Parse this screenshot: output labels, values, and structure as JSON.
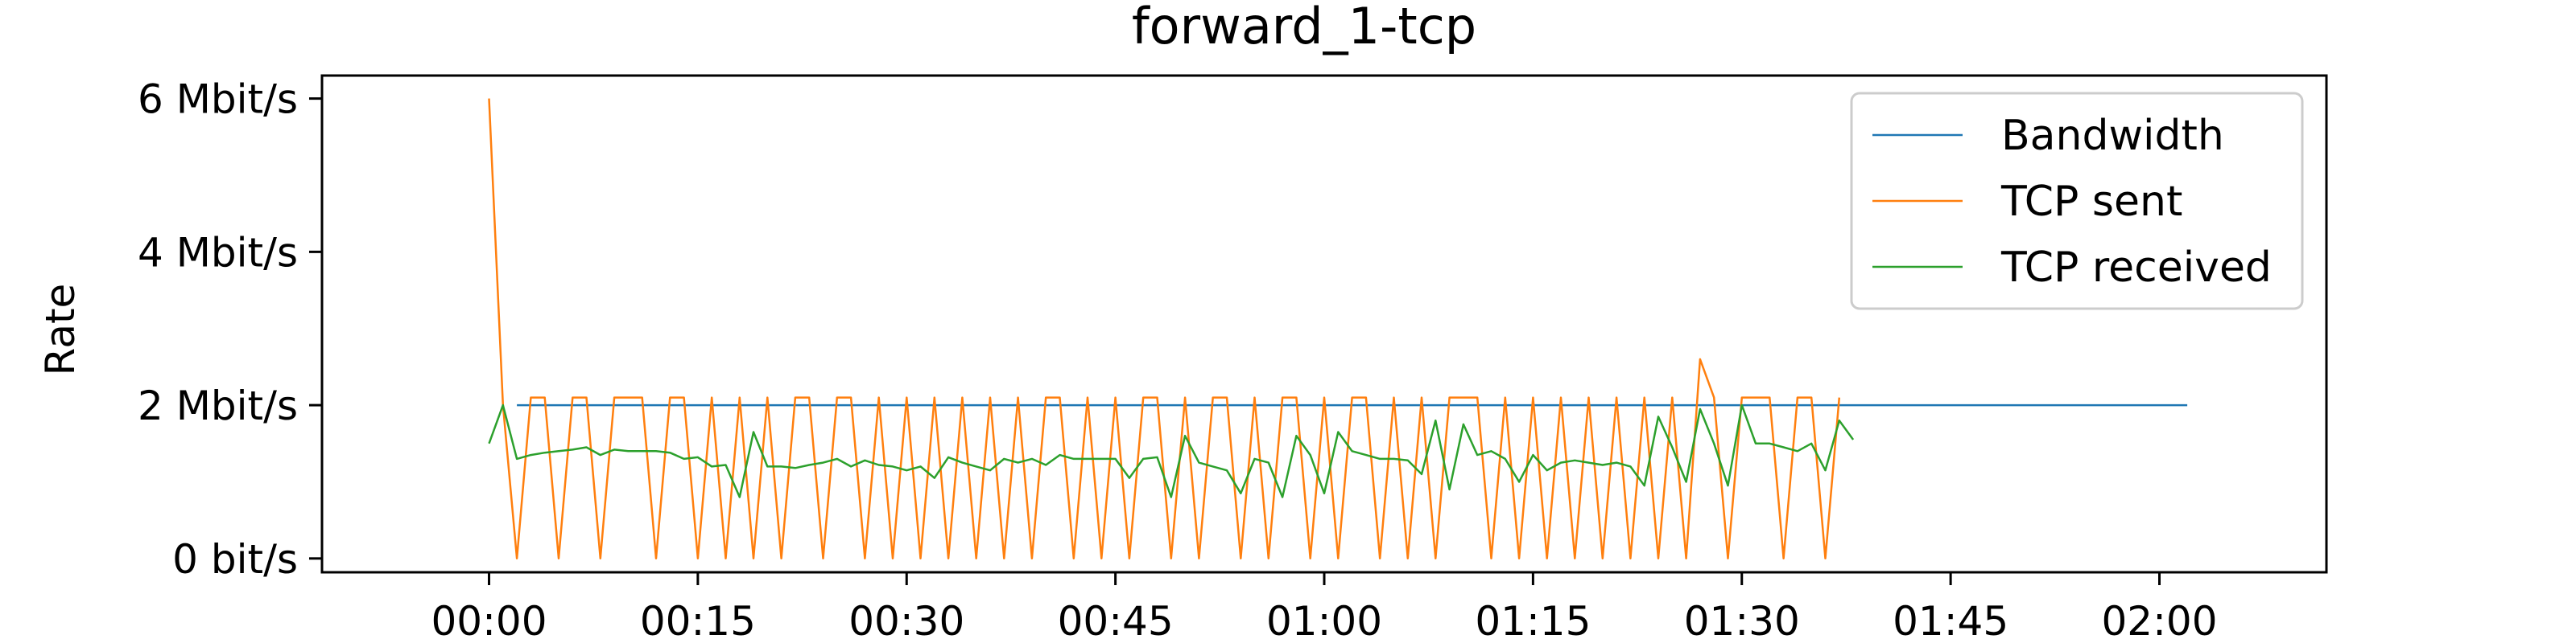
{
  "chart_data": {
    "type": "line",
    "title": "forward_1-tcp",
    "xlabel": "",
    "ylabel": "Rate",
    "x_unit": "seconds",
    "xlim": [
      -12,
      132
    ],
    "ylim": [
      -0.18,
      6.3
    ],
    "y_unit": "Mbit/s",
    "x_ticks": [
      {
        "value": 0,
        "label": "00:00"
      },
      {
        "value": 15,
        "label": "00:15"
      },
      {
        "value": 30,
        "label": "00:30"
      },
      {
        "value": 45,
        "label": "00:45"
      },
      {
        "value": 60,
        "label": "01:00"
      },
      {
        "value": 75,
        "label": "01:15"
      },
      {
        "value": 90,
        "label": "01:30"
      },
      {
        "value": 105,
        "label": "01:45"
      },
      {
        "value": 120,
        "label": "02:00"
      }
    ],
    "y_ticks": [
      {
        "value": 0,
        "label": "0 bit/s"
      },
      {
        "value": 2,
        "label": "2 Mbit/s"
      },
      {
        "value": 4,
        "label": "4 Mbit/s"
      },
      {
        "value": 6,
        "label": "6 Mbit/s"
      }
    ],
    "grid": false,
    "legend_position": "top-right",
    "series": [
      {
        "name": "Bandwidth",
        "color": "#1f77b4",
        "points": [
          [
            2,
            2.0
          ],
          [
            122,
            2.0
          ]
        ]
      },
      {
        "name": "TCP sent",
        "color": "#ff7f0e",
        "points": [
          [
            0,
            6.0
          ],
          [
            1,
            2.0
          ],
          [
            2,
            0.0
          ],
          [
            3,
            2.1
          ],
          [
            4,
            2.1
          ],
          [
            5,
            0.0
          ],
          [
            6,
            2.1
          ],
          [
            7,
            2.1
          ],
          [
            8,
            0.0
          ],
          [
            9,
            2.1
          ],
          [
            10,
            2.1
          ],
          [
            11,
            2.1
          ],
          [
            12,
            0.0
          ],
          [
            13,
            2.1
          ],
          [
            14,
            2.1
          ],
          [
            15,
            0.0
          ],
          [
            16,
            2.1
          ],
          [
            17,
            0.0
          ],
          [
            18,
            2.1
          ],
          [
            19,
            0.0
          ],
          [
            20,
            2.1
          ],
          [
            21,
            0.0
          ],
          [
            22,
            2.1
          ],
          [
            23,
            2.1
          ],
          [
            24,
            0.0
          ],
          [
            25,
            2.1
          ],
          [
            26,
            2.1
          ],
          [
            27,
            0.0
          ],
          [
            28,
            2.1
          ],
          [
            29,
            0.0
          ],
          [
            30,
            2.1
          ],
          [
            31,
            0.0
          ],
          [
            32,
            2.1
          ],
          [
            33,
            0.0
          ],
          [
            34,
            2.1
          ],
          [
            35,
            0.0
          ],
          [
            36,
            2.1
          ],
          [
            37,
            0.0
          ],
          [
            38,
            2.1
          ],
          [
            39,
            0.0
          ],
          [
            40,
            2.1
          ],
          [
            41,
            2.1
          ],
          [
            42,
            0.0
          ],
          [
            43,
            2.1
          ],
          [
            44,
            0.0
          ],
          [
            45,
            2.1
          ],
          [
            46,
            0.0
          ],
          [
            47,
            2.1
          ],
          [
            48,
            2.1
          ],
          [
            49,
            0.0
          ],
          [
            50,
            2.1
          ],
          [
            51,
            0.0
          ],
          [
            52,
            2.1
          ],
          [
            53,
            2.1
          ],
          [
            54,
            0.0
          ],
          [
            55,
            2.1
          ],
          [
            56,
            0.0
          ],
          [
            57,
            2.1
          ],
          [
            58,
            2.1
          ],
          [
            59,
            0.0
          ],
          [
            60,
            2.1
          ],
          [
            61,
            0.0
          ],
          [
            62,
            2.1
          ],
          [
            63,
            2.1
          ],
          [
            64,
            0.0
          ],
          [
            65,
            2.1
          ],
          [
            66,
            0.0
          ],
          [
            67,
            2.1
          ],
          [
            68,
            0.0
          ],
          [
            69,
            2.1
          ],
          [
            70,
            2.1
          ],
          [
            71,
            2.1
          ],
          [
            72,
            0.0
          ],
          [
            73,
            2.1
          ],
          [
            74,
            0.0
          ],
          [
            75,
            2.1
          ],
          [
            76,
            0.0
          ],
          [
            77,
            2.1
          ],
          [
            78,
            0.0
          ],
          [
            79,
            2.1
          ],
          [
            80,
            0.0
          ],
          [
            81,
            2.1
          ],
          [
            82,
            0.0
          ],
          [
            83,
            2.1
          ],
          [
            84,
            0.0
          ],
          [
            85,
            2.1
          ],
          [
            86,
            0.0
          ],
          [
            87,
            2.6
          ],
          [
            88,
            2.1
          ],
          [
            89,
            0.0
          ],
          [
            90,
            2.1
          ],
          [
            91,
            2.1
          ],
          [
            92,
            2.1
          ],
          [
            93,
            0.0
          ],
          [
            94,
            2.1
          ],
          [
            95,
            2.1
          ],
          [
            96,
            0.0
          ],
          [
            97,
            2.1
          ]
        ]
      },
      {
        "name": "TCP received",
        "color": "#2ca02c",
        "points": [
          [
            0,
            1.5
          ],
          [
            1,
            2.0
          ],
          [
            2,
            1.3
          ],
          [
            3,
            1.35
          ],
          [
            4,
            1.38
          ],
          [
            5,
            1.4
          ],
          [
            6,
            1.42
          ],
          [
            7,
            1.45
          ],
          [
            8,
            1.35
          ],
          [
            9,
            1.42
          ],
          [
            10,
            1.4
          ],
          [
            11,
            1.4
          ],
          [
            12,
            1.4
          ],
          [
            13,
            1.38
          ],
          [
            14,
            1.3
          ],
          [
            15,
            1.32
          ],
          [
            16,
            1.2
          ],
          [
            17,
            1.22
          ],
          [
            18,
            0.8
          ],
          [
            19,
            1.65
          ],
          [
            20,
            1.2
          ],
          [
            21,
            1.2
          ],
          [
            22,
            1.18
          ],
          [
            23,
            1.22
          ],
          [
            24,
            1.25
          ],
          [
            25,
            1.3
          ],
          [
            26,
            1.2
          ],
          [
            27,
            1.28
          ],
          [
            28,
            1.22
          ],
          [
            29,
            1.2
          ],
          [
            30,
            1.15
          ],
          [
            31,
            1.2
          ],
          [
            32,
            1.05
          ],
          [
            33,
            1.32
          ],
          [
            34,
            1.25
          ],
          [
            35,
            1.2
          ],
          [
            36,
            1.15
          ],
          [
            37,
            1.3
          ],
          [
            38,
            1.25
          ],
          [
            39,
            1.3
          ],
          [
            40,
            1.22
          ],
          [
            41,
            1.35
          ],
          [
            42,
            1.3
          ],
          [
            43,
            1.3
          ],
          [
            44,
            1.3
          ],
          [
            45,
            1.3
          ],
          [
            46,
            1.05
          ],
          [
            47,
            1.3
          ],
          [
            48,
            1.32
          ],
          [
            49,
            0.8
          ],
          [
            50,
            1.6
          ],
          [
            51,
            1.25
          ],
          [
            52,
            1.2
          ],
          [
            53,
            1.15
          ],
          [
            54,
            0.85
          ],
          [
            55,
            1.3
          ],
          [
            56,
            1.25
          ],
          [
            57,
            0.8
          ],
          [
            58,
            1.6
          ],
          [
            59,
            1.35
          ],
          [
            60,
            0.85
          ],
          [
            61,
            1.65
          ],
          [
            62,
            1.4
          ],
          [
            63,
            1.35
          ],
          [
            64,
            1.3
          ],
          [
            65,
            1.3
          ],
          [
            66,
            1.28
          ],
          [
            67,
            1.1
          ],
          [
            68,
            1.8
          ],
          [
            69,
            0.9
          ],
          [
            70,
            1.75
          ],
          [
            71,
            1.35
          ],
          [
            72,
            1.4
          ],
          [
            73,
            1.3
          ],
          [
            74,
            1.0
          ],
          [
            75,
            1.35
          ],
          [
            76,
            1.15
          ],
          [
            77,
            1.25
          ],
          [
            78,
            1.28
          ],
          [
            79,
            1.25
          ],
          [
            80,
            1.22
          ],
          [
            81,
            1.25
          ],
          [
            82,
            1.2
          ],
          [
            83,
            0.95
          ],
          [
            84,
            1.85
          ],
          [
            85,
            1.45
          ],
          [
            86,
            1.0
          ],
          [
            87,
            1.95
          ],
          [
            88,
            1.5
          ],
          [
            89,
            0.95
          ],
          [
            90,
            2.0
          ],
          [
            91,
            1.5
          ],
          [
            92,
            1.5
          ],
          [
            93,
            1.45
          ],
          [
            94,
            1.4
          ],
          [
            95,
            1.5
          ],
          [
            96,
            1.15
          ],
          [
            97,
            1.8
          ],
          [
            98,
            1.55
          ]
        ]
      }
    ]
  }
}
